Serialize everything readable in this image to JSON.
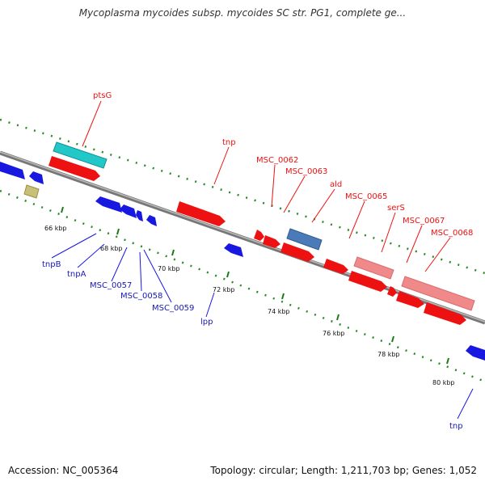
{
  "header": {
    "title": "Mycoplasma mycoides subsp. mycoides SC str. PG1, complete ge..."
  },
  "footer": {
    "accession": "Accession: NC_005364",
    "summary": "Topology: circular; Length: 1,211,703 bp; Genes: 1,052"
  },
  "colors": {
    "forward_cds": "#ee1111",
    "forward_light": "#f08a8a",
    "reverse_cds": "#1818e0",
    "trna": "#22c8c8",
    "rrna": "#4b7ab8",
    "other": "#c8c078",
    "backbone": "#888888",
    "gc_dots": "#2a8a2a"
  },
  "scale": {
    "unit": "kbp",
    "ticks": [
      {
        "label": "66 kbp"
      },
      {
        "label": "68 kbp"
      },
      {
        "label": "70 kbp"
      },
      {
        "label": "72 kbp"
      },
      {
        "label": "74 kbp"
      },
      {
        "label": "76 kbp"
      },
      {
        "label": "78 kbp"
      },
      {
        "label": "80 kbp"
      }
    ]
  },
  "labels": {
    "forward": [
      "ptsG",
      "tnp",
      "MSC_0062",
      "MSC_0063",
      "ald",
      "MSC_0065",
      "serS",
      "MSC_0067",
      "MSC_0068"
    ],
    "reverse": [
      "tnpB",
      "tnpA",
      "MSC_0057",
      "MSC_0058",
      "MSC_0059",
      "lpp",
      "tnp"
    ]
  }
}
